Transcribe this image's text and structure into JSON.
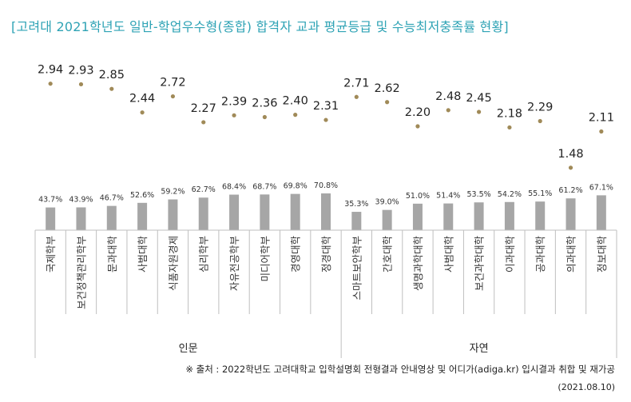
{
  "title": "[고려대 2021학년도 일반-학업우수형(종합) 합격자 교과 평균등급 및 수능최저충족률 현황]",
  "source": "※ 출처 : 2022학년도 고려대학교 입학설명회 전형결과 안내영상 및 어디가(adiga.kr) 입시결과 취합 및 재가공",
  "date": "(2021.08.10)",
  "colors": {
    "title": "#2fa3b5",
    "grade_dot": "#a08a58",
    "bar": "#a6a6a6",
    "axis": "#bfbfbf"
  },
  "chart_data": {
    "type": "bar",
    "categories": [
      "국제학부",
      "보건정책관리학부",
      "문과대학",
      "사범대학",
      "식품자원경제",
      "심리학부",
      "자유전공학부",
      "미디어학부",
      "경영대학",
      "정경대학",
      "스마트보안학부",
      "간호대학",
      "생명과학대학",
      "사범대학",
      "보건과학대학",
      "이과대학",
      "공과대학",
      "의과대학",
      "정보대학"
    ],
    "groups": [
      {
        "label": "인문",
        "count": 10
      },
      {
        "label": "자연",
        "count": 9
      }
    ],
    "series": [
      {
        "values": [
          2.94,
          2.93,
          2.85,
          2.44,
          2.72,
          2.27,
          2.39,
          2.36,
          2.4,
          2.31,
          2.71,
          2.62,
          2.2,
          2.48,
          2.45,
          2.18,
          2.29,
          1.48,
          2.11
        ],
        "labels": [
          "2.94",
          "2.93",
          "2.85",
          "2.44",
          "2.72",
          "2.27",
          "2.39",
          "2.36",
          "2.40",
          "2.31",
          "2.71",
          "2.62",
          "2.20",
          "2.48",
          "2.45",
          "2.18",
          "2.29",
          "1.48",
          "2.11"
        ],
        "mark": "dot"
      },
      {
        "values": [
          43.7,
          43.9,
          46.7,
          52.6,
          59.2,
          62.7,
          68.4,
          68.7,
          69.8,
          70.8,
          35.3,
          39.0,
          51.0,
          51.4,
          53.5,
          54.2,
          55.1,
          61.2,
          67.1
        ],
        "labels": [
          "43.7%",
          "43.9%",
          "46.7%",
          "52.6%",
          "59.2%",
          "62.7%",
          "68.4%",
          "68.7%",
          "69.8%",
          "70.8%",
          "35.3%",
          "39.0%",
          "51.0%",
          "51.4%",
          "53.5%",
          "54.2%",
          "55.1%",
          "61.2%",
          "67.1%"
        ],
        "mark": "bar"
      }
    ],
    "dot_axis": {
      "range": [
        1.2,
        3.2
      ],
      "visible": false
    },
    "bar_axis": {
      "range": [
        0,
        100
      ],
      "unit": "%",
      "visible": false
    },
    "grid": false,
    "legend": "none"
  }
}
